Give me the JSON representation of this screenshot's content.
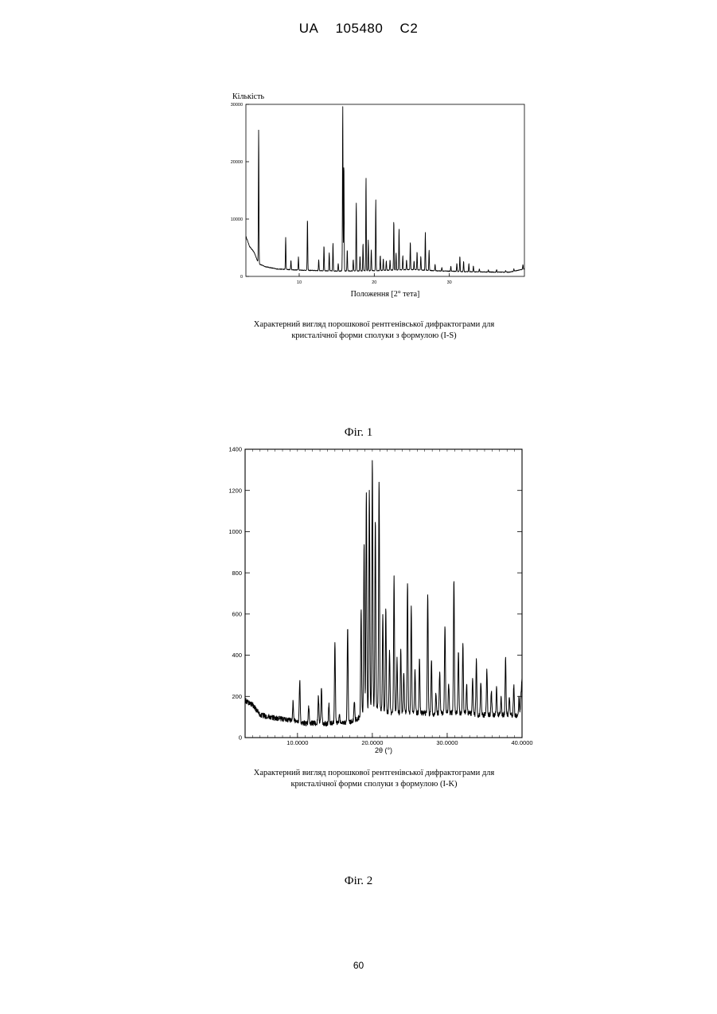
{
  "header": {
    "country": "UA",
    "number": "105480",
    "kind": "C2"
  },
  "page_number": "60",
  "figures": [
    {
      "label": "Фіг. 1",
      "caption_line1": "Характерний вигляд порошкової рентгенівської дифрактограми для",
      "caption_line2": "кристалічної форми сполуки з формулою (I-S)"
    },
    {
      "label": "Фіг. 2",
      "caption_line1": "Характерний вигляд порошкової рентгенівської дифрактограми для",
      "caption_line2": "кристалічної форми сполуки з формулою (I-K)"
    }
  ],
  "chart_data": [
    {
      "type": "line",
      "title": "",
      "xlabel": "Положення [2° тета]",
      "ylabel": "Кількість",
      "xlim": [
        2.9,
        40.0
      ],
      "ylim": [
        0,
        30000
      ],
      "x_ticks": [
        10,
        20,
        30
      ],
      "x_tick_labels": [
        "10",
        "20",
        "30"
      ],
      "y_ticks": [
        0,
        10000,
        20000,
        30000
      ],
      "y_tick_labels": [
        "0",
        "10000",
        "20000",
        "30000"
      ],
      "grid": false,
      "baseline": [
        [
          2.9,
          7000
        ],
        [
          3.4,
          5200
        ],
        [
          4.0,
          4200
        ],
        [
          4.6,
          2200
        ],
        [
          5.5,
          1700
        ],
        [
          7.0,
          1300
        ],
        [
          10.0,
          1100
        ],
        [
          13.0,
          1000
        ],
        [
          15.0,
          950
        ],
        [
          18.0,
          950
        ],
        [
          20.0,
          1000
        ],
        [
          22.0,
          1100
        ],
        [
          25.0,
          1200
        ],
        [
          28.0,
          1000
        ],
        [
          30.0,
          900
        ],
        [
          33.0,
          800
        ],
        [
          36.0,
          750
        ],
        [
          38.0,
          750
        ],
        [
          40.0,
          1300
        ]
      ],
      "peaks": [
        {
          "x": 4.6,
          "y": 25700
        },
        {
          "x": 8.2,
          "y": 6800
        },
        {
          "x": 8.9,
          "y": 2800
        },
        {
          "x": 9.9,
          "y": 3400
        },
        {
          "x": 11.1,
          "y": 10100
        },
        {
          "x": 12.6,
          "y": 2900
        },
        {
          "x": 13.3,
          "y": 5400
        },
        {
          "x": 14.0,
          "y": 4100
        },
        {
          "x": 14.5,
          "y": 5800
        },
        {
          "x": 15.2,
          "y": 2300
        },
        {
          "x": 15.8,
          "y": 30000
        },
        {
          "x": 15.95,
          "y": 20000
        },
        {
          "x": 16.4,
          "y": 4700
        },
        {
          "x": 17.2,
          "y": 3000
        },
        {
          "x": 17.6,
          "y": 13000
        },
        {
          "x": 18.1,
          "y": 3600
        },
        {
          "x": 18.5,
          "y": 5800
        },
        {
          "x": 18.9,
          "y": 17400
        },
        {
          "x": 19.2,
          "y": 6300
        },
        {
          "x": 19.6,
          "y": 4700
        },
        {
          "x": 20.2,
          "y": 13400
        },
        {
          "x": 20.8,
          "y": 3700
        },
        {
          "x": 21.2,
          "y": 3100
        },
        {
          "x": 21.6,
          "y": 2700
        },
        {
          "x": 22.1,
          "y": 2900
        },
        {
          "x": 22.6,
          "y": 9800
        },
        {
          "x": 22.9,
          "y": 4100
        },
        {
          "x": 23.3,
          "y": 8300
        },
        {
          "x": 23.8,
          "y": 3700
        },
        {
          "x": 24.3,
          "y": 2900
        },
        {
          "x": 24.8,
          "y": 6100
        },
        {
          "x": 25.3,
          "y": 2700
        },
        {
          "x": 25.7,
          "y": 4300
        },
        {
          "x": 26.2,
          "y": 3500
        },
        {
          "x": 26.8,
          "y": 7700
        },
        {
          "x": 27.3,
          "y": 4600
        },
        {
          "x": 28.1,
          "y": 2100
        },
        {
          "x": 29.0,
          "y": 1600
        },
        {
          "x": 30.2,
          "y": 1800
        },
        {
          "x": 31.0,
          "y": 2300
        },
        {
          "x": 31.4,
          "y": 3500
        },
        {
          "x": 31.9,
          "y": 2600
        },
        {
          "x": 32.6,
          "y": 2200
        },
        {
          "x": 33.2,
          "y": 1800
        },
        {
          "x": 34.0,
          "y": 1300
        },
        {
          "x": 35.2,
          "y": 1100
        },
        {
          "x": 36.3,
          "y": 1200
        },
        {
          "x": 37.5,
          "y": 1000
        },
        {
          "x": 38.6,
          "y": 1300
        },
        {
          "x": 39.8,
          "y": 2100
        }
      ]
    },
    {
      "type": "line",
      "title": "",
      "xlabel": "2θ (°)",
      "ylabel": "",
      "xlim": [
        3.0,
        40.0
      ],
      "ylim": [
        0,
        1400
      ],
      "x_ticks": [
        10,
        20,
        30,
        40
      ],
      "x_tick_labels": [
        "10.0000",
        "20.0000",
        "30.0000",
        "40.0000"
      ],
      "y_ticks": [
        0,
        200,
        400,
        600,
        800,
        1000,
        1200,
        1400
      ],
      "y_tick_labels": [
        "0",
        "200",
        "400",
        "600",
        "800",
        "1000",
        "1200",
        "1400"
      ],
      "grid": false,
      "baseline": [
        [
          3.0,
          180
        ],
        [
          4.0,
          160
        ],
        [
          5.0,
          110
        ],
        [
          7.0,
          95
        ],
        [
          9.0,
          85
        ],
        [
          10.0,
          80
        ],
        [
          11.0,
          70
        ],
        [
          12.0,
          70
        ],
        [
          13.0,
          70
        ],
        [
          14.0,
          68
        ],
        [
          15.0,
          70
        ],
        [
          16.0,
          72
        ],
        [
          17.0,
          75
        ],
        [
          18.0,
          90
        ],
        [
          19.0,
          130
        ],
        [
          20.0,
          150
        ],
        [
          21.0,
          140
        ],
        [
          22.0,
          120
        ],
        [
          23.0,
          120
        ],
        [
          24.0,
          120
        ],
        [
          25.0,
          120
        ],
        [
          26.0,
          120
        ],
        [
          27.0,
          120
        ],
        [
          28.0,
          110
        ],
        [
          29.0,
          120
        ],
        [
          30.0,
          120
        ],
        [
          31.0,
          120
        ],
        [
          32.0,
          120
        ],
        [
          33.0,
          120
        ],
        [
          34.0,
          110
        ],
        [
          35.0,
          110
        ],
        [
          36.0,
          110
        ],
        [
          37.0,
          110
        ],
        [
          38.0,
          110
        ],
        [
          39.0,
          110
        ],
        [
          39.7,
          100
        ],
        [
          40.0,
          300
        ]
      ],
      "peaks": [
        {
          "x": 9.4,
          "y": 170
        },
        {
          "x": 10.3,
          "y": 280
        },
        {
          "x": 11.5,
          "y": 150
        },
        {
          "x": 12.8,
          "y": 200
        },
        {
          "x": 13.2,
          "y": 240
        },
        {
          "x": 14.2,
          "y": 160
        },
        {
          "x": 15.0,
          "y": 460
        },
        {
          "x": 15.6,
          "y": 110
        },
        {
          "x": 16.7,
          "y": 540
        },
        {
          "x": 17.6,
          "y": 180
        },
        {
          "x": 18.5,
          "y": 620
        },
        {
          "x": 18.9,
          "y": 940
        },
        {
          "x": 19.2,
          "y": 1200
        },
        {
          "x": 19.6,
          "y": 1190
        },
        {
          "x": 20.0,
          "y": 1350
        },
        {
          "x": 20.4,
          "y": 1050
        },
        {
          "x": 20.9,
          "y": 1250
        },
        {
          "x": 21.4,
          "y": 600
        },
        {
          "x": 21.8,
          "y": 630
        },
        {
          "x": 22.3,
          "y": 420
        },
        {
          "x": 22.9,
          "y": 780
        },
        {
          "x": 23.3,
          "y": 380
        },
        {
          "x": 23.8,
          "y": 430
        },
        {
          "x": 24.2,
          "y": 320
        },
        {
          "x": 24.7,
          "y": 760
        },
        {
          "x": 25.2,
          "y": 640
        },
        {
          "x": 25.7,
          "y": 330
        },
        {
          "x": 26.3,
          "y": 380
        },
        {
          "x": 27.4,
          "y": 700
        },
        {
          "x": 27.9,
          "y": 380
        },
        {
          "x": 28.5,
          "y": 220
        },
        {
          "x": 29.0,
          "y": 320
        },
        {
          "x": 29.7,
          "y": 550
        },
        {
          "x": 30.2,
          "y": 260
        },
        {
          "x": 30.9,
          "y": 770
        },
        {
          "x": 31.5,
          "y": 420
        },
        {
          "x": 32.1,
          "y": 460
        },
        {
          "x": 32.6,
          "y": 260
        },
        {
          "x": 33.4,
          "y": 280
        },
        {
          "x": 33.9,
          "y": 380
        },
        {
          "x": 34.5,
          "y": 270
        },
        {
          "x": 35.3,
          "y": 330
        },
        {
          "x": 35.9,
          "y": 230
        },
        {
          "x": 36.6,
          "y": 240
        },
        {
          "x": 37.2,
          "y": 190
        },
        {
          "x": 37.8,
          "y": 380
        },
        {
          "x": 38.3,
          "y": 200
        },
        {
          "x": 38.9,
          "y": 250
        },
        {
          "x": 39.6,
          "y": 190
        }
      ]
    }
  ]
}
